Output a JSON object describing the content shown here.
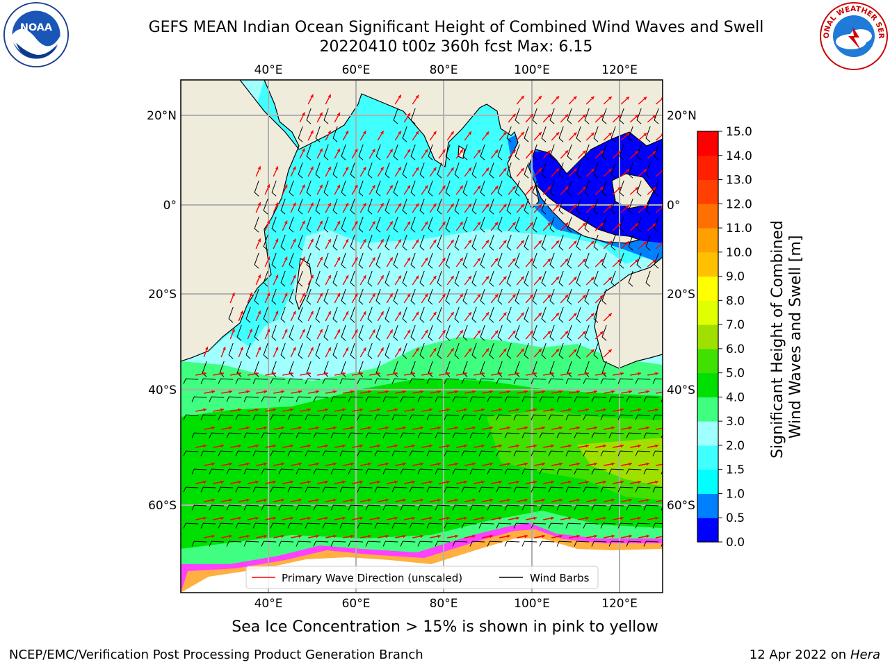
{
  "title_line1": "GEFS MEAN Indian Ocean Significant Height of Combined Wind Waves and Swell",
  "title_line2": "20220410 t00z 360h fcst   Max: 6.15",
  "logos": {
    "left": "noaa-logo",
    "right": "nws-logo",
    "left_text": "NOAA",
    "right_text": "NATIONAL WEATHER SERVICE"
  },
  "map": {
    "lon_ticks": [
      "40°E",
      "60°E",
      "80°E",
      "100°E",
      "120°E"
    ],
    "lat_ticks": [
      "20°N",
      "0°",
      "20°S",
      "40°S",
      "60°S"
    ],
    "colors": {
      "land": "#efecdc",
      "grid": "#b0b0b0",
      "coast": "#000000",
      "wave_dir": "#ff0000",
      "barb": "#000000"
    }
  },
  "legend": {
    "wave_direction_label": "Primary Wave Direction (unscaled)",
    "wind_barbs_label": "Wind Barbs"
  },
  "colorbar": {
    "label_line1": "Significant Height of Combined",
    "label_line2": "Wind Waves and Swell [m]",
    "ticks": [
      "0.0",
      "0.5",
      "1.0",
      "1.5",
      "2.0",
      "3.0",
      "4.0",
      "5.0",
      "6.0",
      "7.0",
      "8.0",
      "9.0",
      "10.0",
      "11.0",
      "12.0",
      "13.0",
      "14.0",
      "15.0"
    ],
    "colors": [
      "#0000ff",
      "#0080ff",
      "#00ffff",
      "#40ffff",
      "#a0ffff",
      "#40ff80",
      "#00e000",
      "#40e000",
      "#a0e000",
      "#e0ff00",
      "#ffff00",
      "#ffc000",
      "#ffa000",
      "#ff7000",
      "#ff4000",
      "#ff2000",
      "#ff0000"
    ]
  },
  "sea_ice_note": "Sea Ice Concentration > 15% is shown in pink to yellow",
  "footer_left": "NCEP/EMC/Verification Post Processing Product Generation Branch",
  "footer_right_date": "12 Apr 2022 on",
  "footer_right_host": "Hera"
}
